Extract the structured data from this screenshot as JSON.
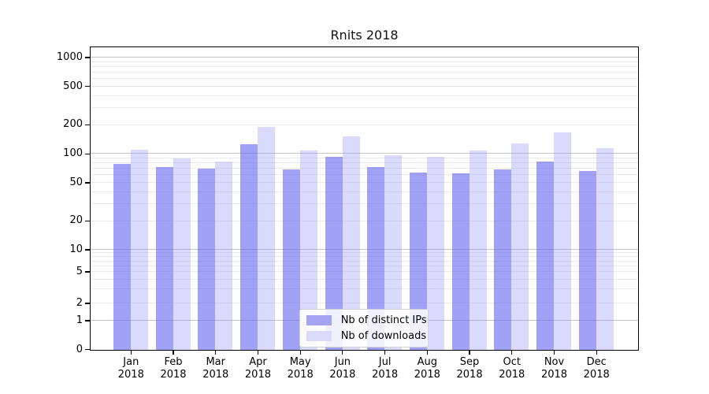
{
  "title": "Rnits 2018",
  "colors": {
    "bar_distinct_ips": "#a2a2f4",
    "bar_downloads": "#dadafb",
    "grid_major": "#c4c4c4",
    "grid_minor": "#ebebeb",
    "spine": "#000000"
  },
  "legend": {
    "items": [
      {
        "label": "Nb of distinct IPs",
        "swatch": "dark"
      },
      {
        "label": "Nb of downloads",
        "swatch": "light"
      }
    ]
  },
  "y_axis": {
    "tick_labels": [
      "1000",
      "500",
      "200",
      "100",
      "50",
      "20",
      "10",
      "5",
      "2",
      "1",
      "0"
    ]
  },
  "x_axis": {
    "months": [
      "Jan",
      "Feb",
      "Mar",
      "Apr",
      "May",
      "Jun",
      "Jul",
      "Aug",
      "Sep",
      "Oct",
      "Nov",
      "Dec"
    ],
    "year": "2018"
  },
  "chart_data": {
    "type": "bar",
    "title": "Rnits 2018",
    "categories": [
      "Jan 2018",
      "Feb 2018",
      "Mar 2018",
      "Apr 2018",
      "May 2018",
      "Jun 2018",
      "Jul 2018",
      "Aug 2018",
      "Sep 2018",
      "Oct 2018",
      "Nov 2018",
      "Dec 2018"
    ],
    "series": [
      {
        "name": "Nb of distinct IPs",
        "values": [
          78,
          73,
          70,
          125,
          68,
          93,
          73,
          64,
          62,
          69,
          82,
          66
        ]
      },
      {
        "name": "Nb of downloads",
        "values": [
          110,
          90,
          82,
          188,
          108,
          150,
          97,
          92,
          108,
          128,
          166,
          113
        ]
      }
    ],
    "ylabel": "",
    "xlabel": "",
    "yscale": "symlog",
    "yticks": [
      0,
      1,
      2,
      5,
      10,
      20,
      50,
      100,
      200,
      500,
      1000
    ],
    "ylim": [
      0,
      1300
    ],
    "grid": true,
    "legend_position": "lower center"
  }
}
